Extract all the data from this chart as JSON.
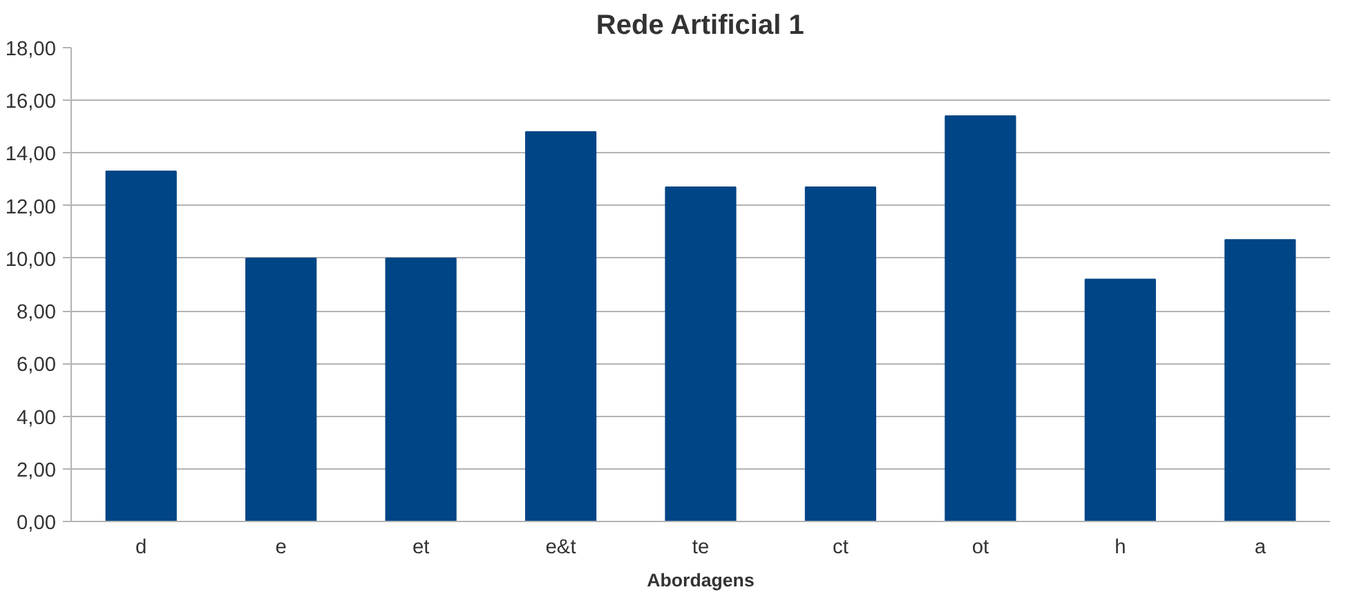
{
  "chart_data": {
    "type": "bar",
    "title": "Rede Artificial 1",
    "xlabel": "Abordagens",
    "categories": [
      "d",
      "e",
      "et",
      "e&t",
      "te",
      "ct",
      "ot",
      "h",
      "a"
    ],
    "values": [
      13.3,
      10.0,
      10.0,
      14.8,
      12.7,
      12.7,
      15.4,
      9.2,
      10.7
    ],
    "color": "#004586",
    "ylim": [
      0,
      18
    ],
    "yticks": [
      {
        "value": 0,
        "label": "0,00"
      },
      {
        "value": 2,
        "label": "2,00"
      },
      {
        "value": 4,
        "label": "4,00"
      },
      {
        "value": 6,
        "label": "6,00"
      },
      {
        "value": 8,
        "label": "8,00"
      },
      {
        "value": 10,
        "label": "10,00"
      },
      {
        "value": 12,
        "label": "12,00"
      },
      {
        "value": 14,
        "label": "14,00"
      },
      {
        "value": 16,
        "label": "16,00"
      },
      {
        "value": 18,
        "label": "18,00"
      }
    ],
    "grid": "y"
  }
}
